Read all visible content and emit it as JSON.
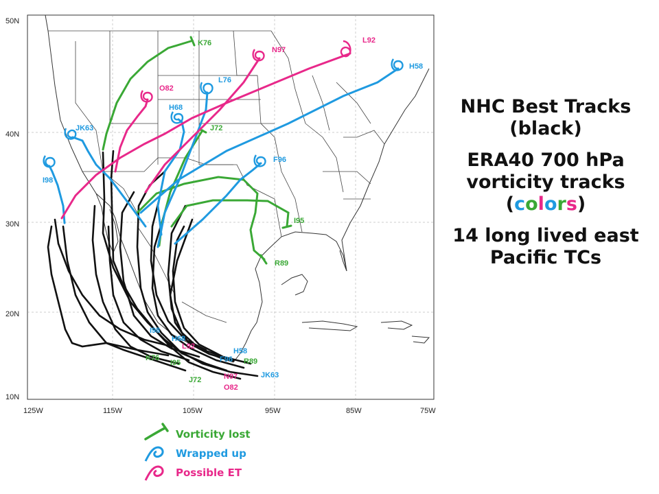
{
  "map": {
    "lat_labels": [
      "50N",
      "40N",
      "30N",
      "20N",
      "10N"
    ],
    "lon_labels": [
      "125W",
      "115W",
      "105W",
      "95W",
      "85W",
      "75W"
    ],
    "track_labels": {
      "K76": "K76",
      "N97": "N97",
      "L92": "L92",
      "H58": "H58",
      "O82": "O82",
      "L76": "L76",
      "H68": "H68",
      "J72": "J72",
      "JK63": "JK63",
      "F96": "F96",
      "I98": "I98",
      "I95": "I95",
      "R89": "R89"
    },
    "genesis_labels": {
      "I98": "I98",
      "H68": "H68",
      "L92": "L92",
      "K76": "K76",
      "I95": "I95",
      "F96": "F96",
      "H58": "H58",
      "R89": "R89",
      "JK63": "JK63",
      "J72": "J72",
      "N97": "N97",
      "O82": "O82"
    }
  },
  "legend": {
    "vorticity_lost": "Vorticity lost",
    "wrapped_up": "Wrapped up",
    "possible_et": "Possible ET"
  },
  "caption": {
    "line1": "NHC Best Tracks",
    "line2": "(black)",
    "line3": "ERA40 700 hPa",
    "line4": "vorticity tracks",
    "colors_open": "(",
    "colors_letters": [
      "c",
      "o",
      "l",
      "o",
      "r",
      "s"
    ],
    "colors_close": ")",
    "line6": "14 long lived east",
    "line7": "Pacific TCs"
  },
  "colors": {
    "green": "#3aa835",
    "blue": "#1f9ae0",
    "magenta": "#e8288a",
    "black": "#111111",
    "letter_colors": [
      "#1f9ae0",
      "#3aa835",
      "#e8288a",
      "#1f9ae0",
      "#3aa835",
      "#e8288a"
    ]
  }
}
